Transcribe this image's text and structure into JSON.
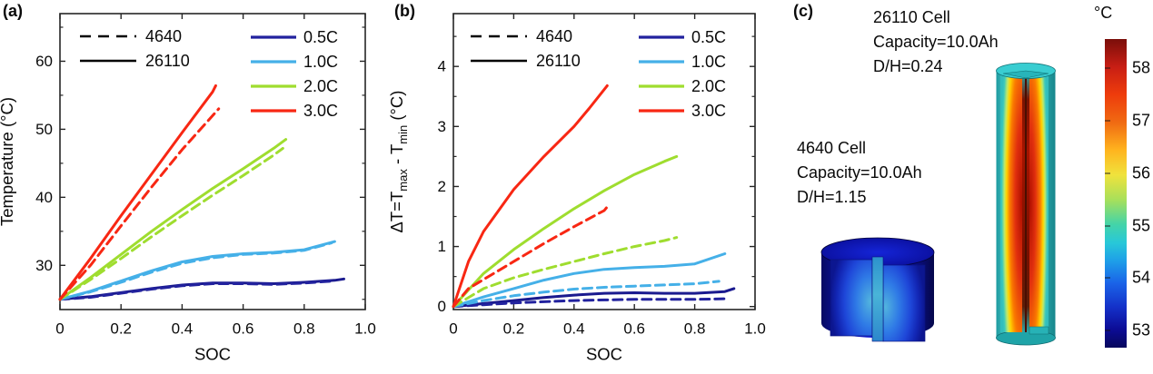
{
  "chart_data": [
    {
      "id": "a",
      "type": "line",
      "panel_label": "(a)",
      "xlabel": "SOC",
      "ylabel": [
        {
          "t": "Temperature (°C)",
          "sub": false
        }
      ],
      "xlim": [
        0,
        1.0
      ],
      "ylim": [
        23.5,
        67
      ],
      "xticks": {
        "values": [
          0,
          0.2,
          0.4,
          0.6,
          0.8,
          1.0
        ],
        "labels": [
          "0",
          "0.2",
          "0.4",
          "0.6",
          "0.8",
          "1.0"
        ]
      },
      "yticks": {
        "values": [
          30,
          40,
          50,
          60
        ],
        "labels": [
          "30",
          "40",
          "50",
          "60"
        ]
      },
      "yminor": [
        25,
        35,
        45,
        55,
        65
      ],
      "grid": false,
      "legend_linestyle": [
        {
          "label": "4640",
          "dashed": true
        },
        {
          "label": "26110",
          "dashed": false
        }
      ],
      "legend_series": [
        {
          "label": "0.5C",
          "color": "#22229e"
        },
        {
          "label": "1.0C",
          "color": "#45b0e8"
        },
        {
          "label": "2.0C",
          "color": "#9fdd2f"
        },
        {
          "label": "3.0C",
          "color": "#f82713"
        }
      ],
      "series": [
        {
          "name": "26110 0.5C",
          "color": "#1a1a8f",
          "dashed": false,
          "x": [
            0,
            0.1,
            0.2,
            0.3,
            0.4,
            0.5,
            0.6,
            0.7,
            0.8,
            0.9,
            0.93
          ],
          "y": [
            25,
            25.4,
            26,
            26.6,
            27.1,
            27.4,
            27.4,
            27.3,
            27.5,
            27.8,
            28
          ]
        },
        {
          "name": "4640 0.5C",
          "color": "#22229e",
          "dashed": true,
          "x": [
            0,
            0.1,
            0.2,
            0.3,
            0.4,
            0.5,
            0.6,
            0.7,
            0.8,
            0.9
          ],
          "y": [
            25,
            25.3,
            25.9,
            26.5,
            27,
            27.3,
            27.3,
            27.2,
            27.4,
            27.7
          ]
        },
        {
          "name": "26110 1.0C",
          "color": "#45b0e8",
          "dashed": false,
          "x": [
            0,
            0.1,
            0.2,
            0.3,
            0.4,
            0.5,
            0.6,
            0.7,
            0.8,
            0.9
          ],
          "y": [
            25,
            26.2,
            27.7,
            29.2,
            30.5,
            31.3,
            31.7,
            31.9,
            32.3,
            33.5
          ]
        },
        {
          "name": "4640 1.0C",
          "color": "#45b0e8",
          "dashed": true,
          "x": [
            0,
            0.1,
            0.2,
            0.3,
            0.4,
            0.5,
            0.6,
            0.7,
            0.8,
            0.89
          ],
          "y": [
            25,
            26.1,
            27.5,
            29,
            30.3,
            31.1,
            31.6,
            31.8,
            32.2,
            33.3
          ]
        },
        {
          "name": "26110 2.0C",
          "color": "#9fdd2f",
          "dashed": false,
          "x": [
            0,
            0.1,
            0.2,
            0.3,
            0.4,
            0.5,
            0.6,
            0.7,
            0.74
          ],
          "y": [
            25,
            28.2,
            31.6,
            35,
            38.2,
            41.3,
            44.2,
            47.2,
            48.5
          ]
        },
        {
          "name": "4640 2.0C",
          "color": "#9fdd2f",
          "dashed": true,
          "x": [
            0,
            0.1,
            0.2,
            0.3,
            0.4,
            0.5,
            0.6,
            0.7,
            0.73
          ],
          "y": [
            25,
            27.9,
            31,
            34.2,
            37.3,
            40.3,
            43.2,
            46.2,
            47.2
          ]
        },
        {
          "name": "26110 3.0C",
          "color": "#f82713",
          "dashed": false,
          "x": [
            0,
            0.1,
            0.2,
            0.3,
            0.4,
            0.5,
            0.51
          ],
          "y": [
            25,
            31,
            37.3,
            43.4,
            49.5,
            55.5,
            56.4
          ]
        },
        {
          "name": "4640 3.0C",
          "color": "#f82713",
          "dashed": true,
          "x": [
            0,
            0.1,
            0.2,
            0.3,
            0.4,
            0.5,
            0.52
          ],
          "y": [
            25,
            30,
            35.8,
            41.5,
            47,
            52,
            53
          ]
        }
      ]
    },
    {
      "id": "b",
      "type": "line",
      "panel_label": "(b)",
      "xlabel": "SOC",
      "ylabel": [
        {
          "t": "ΔT=T",
          "sub": false
        },
        {
          "t": "max",
          "sub": true
        },
        {
          "t": " - T",
          "sub": false
        },
        {
          "t": "min",
          "sub": true
        },
        {
          "t": " (°C)",
          "sub": false
        }
      ],
      "xlim": [
        0,
        1.0
      ],
      "ylim": [
        -0.05,
        4.88
      ],
      "xticks": {
        "values": [
          0,
          0.2,
          0.4,
          0.6,
          0.8,
          1.0
        ],
        "labels": [
          "0",
          "0.2",
          "0.4",
          "0.6",
          "0.8",
          "1.0"
        ]
      },
      "yticks": {
        "values": [
          0,
          1,
          2,
          3,
          4
        ],
        "labels": [
          "0",
          "1",
          "2",
          "3",
          "4"
        ]
      },
      "yminor": [
        0.5,
        1.5,
        2.5,
        3.5,
        4.5
      ],
      "grid": false,
      "legend_linestyle": [
        {
          "label": "4640",
          "dashed": true
        },
        {
          "label": "26110",
          "dashed": false
        }
      ],
      "legend_series": [
        {
          "label": "0.5C",
          "color": "#22229e"
        },
        {
          "label": "1.0C",
          "color": "#45b0e8"
        },
        {
          "label": "2.0C",
          "color": "#9fdd2f"
        },
        {
          "label": "3.0C",
          "color": "#f82713"
        }
      ],
      "series": [
        {
          "name": "26110 0.5C",
          "color": "#1a1a8f",
          "dashed": false,
          "x": [
            0,
            0.1,
            0.2,
            0.3,
            0.4,
            0.5,
            0.6,
            0.7,
            0.8,
            0.9,
            0.93
          ],
          "y": [
            0,
            0.05,
            0.1,
            0.15,
            0.19,
            0.22,
            0.23,
            0.22,
            0.22,
            0.25,
            0.3
          ]
        },
        {
          "name": "4640 0.5C",
          "color": "#22229e",
          "dashed": true,
          "x": [
            0,
            0.1,
            0.2,
            0.3,
            0.4,
            0.5,
            0.6,
            0.7,
            0.8,
            0.9
          ],
          "y": [
            0,
            0.03,
            0.06,
            0.08,
            0.1,
            0.11,
            0.12,
            0.12,
            0.12,
            0.13
          ]
        },
        {
          "name": "26110 1.0C",
          "color": "#45b0e8",
          "dashed": false,
          "x": [
            0,
            0.1,
            0.2,
            0.3,
            0.4,
            0.5,
            0.6,
            0.7,
            0.8,
            0.9
          ],
          "y": [
            0,
            0.16,
            0.3,
            0.44,
            0.55,
            0.62,
            0.65,
            0.67,
            0.71,
            0.88
          ]
        },
        {
          "name": "4640 1.0C",
          "color": "#45b0e8",
          "dashed": true,
          "x": [
            0,
            0.1,
            0.2,
            0.3,
            0.4,
            0.5,
            0.6,
            0.7,
            0.8,
            0.88
          ],
          "y": [
            0,
            0.1,
            0.18,
            0.24,
            0.29,
            0.32,
            0.34,
            0.36,
            0.38,
            0.42
          ]
        },
        {
          "name": "26110 2.0C",
          "color": "#9fdd2f",
          "dashed": false,
          "x": [
            0,
            0.1,
            0.2,
            0.3,
            0.4,
            0.5,
            0.6,
            0.7,
            0.74
          ],
          "y": [
            0,
            0.55,
            0.95,
            1.3,
            1.63,
            1.93,
            2.2,
            2.42,
            2.5
          ]
        },
        {
          "name": "4640 2.0C",
          "color": "#9fdd2f",
          "dashed": true,
          "x": [
            0,
            0.1,
            0.2,
            0.3,
            0.4,
            0.5,
            0.6,
            0.7,
            0.74
          ],
          "y": [
            0,
            0.3,
            0.48,
            0.62,
            0.75,
            0.88,
            1.0,
            1.1,
            1.15
          ]
        },
        {
          "name": "26110 3.0C",
          "color": "#f82713",
          "dashed": false,
          "x": [
            0,
            0.05,
            0.1,
            0.2,
            0.3,
            0.4,
            0.45,
            0.51
          ],
          "y": [
            0,
            0.75,
            1.25,
            1.95,
            2.5,
            3.0,
            3.3,
            3.68
          ]
        },
        {
          "name": "4640 3.0C",
          "color": "#f82713",
          "dashed": true,
          "x": [
            0,
            0.05,
            0.1,
            0.2,
            0.3,
            0.4,
            0.5,
            0.51
          ],
          "y": [
            0,
            0.3,
            0.45,
            0.75,
            1.05,
            1.33,
            1.6,
            1.66
          ]
        }
      ]
    }
  ],
  "panel_c": {
    "panel_label": "(c)",
    "cell_26110": {
      "lines": [
        "26110 Cell",
        "Capacity=10.0Ah",
        "D/H=0.24"
      ]
    },
    "cell_4640": {
      "lines": [
        "4640 Cell",
        "Capacity=10.0Ah",
        "D/H=1.15"
      ]
    },
    "colorbar": {
      "title": "°C",
      "ticks": [
        58,
        57,
        56,
        55,
        54,
        53
      ],
      "vmax": 58.56,
      "vmin": 52.67,
      "gradient": [
        "#7a0e0a 0%",
        "#c81e14 9%",
        "#ee3c0c 18%",
        "#f06a12 27%",
        "#ffb41e 36%",
        "#f0e23c 44%",
        "#a8e05a 52%",
        "#44d4a8 60%",
        "#28c8d8 66%",
        "#1e9ee8 72%",
        "#1a64e8 79%",
        "#1430c8 87%",
        "#0c0c96 94%",
        "#07075c 100%"
      ]
    }
  }
}
